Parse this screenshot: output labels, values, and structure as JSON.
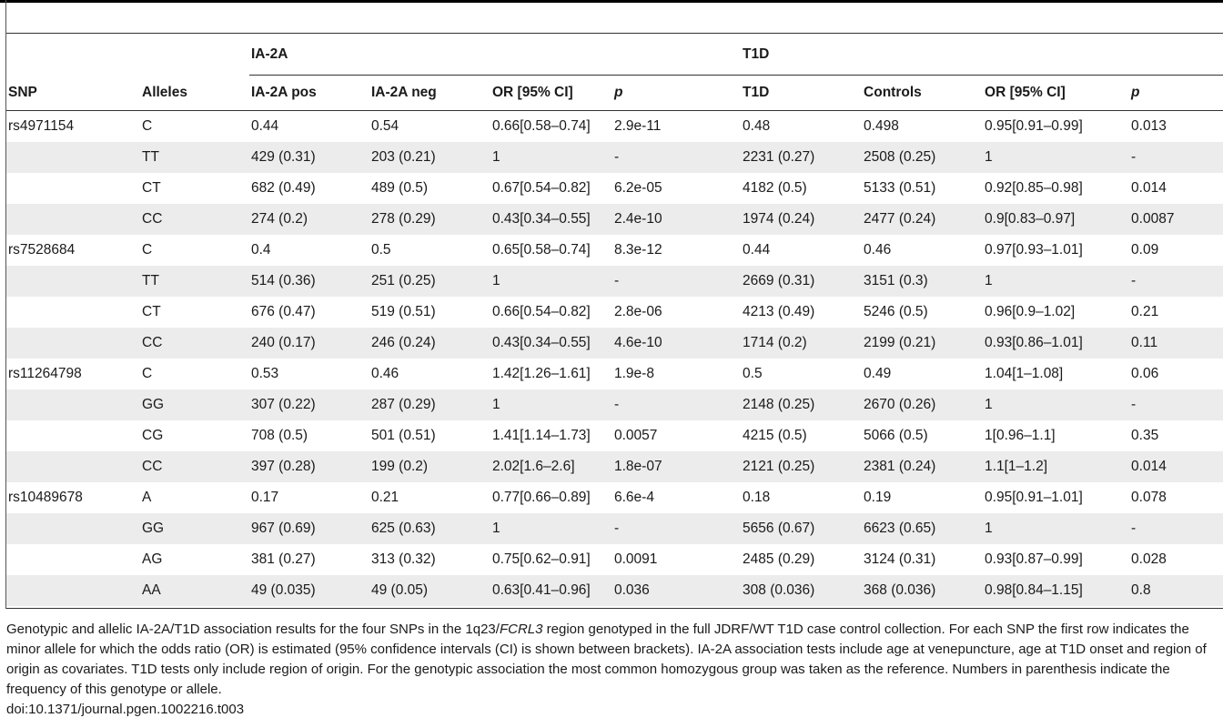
{
  "table": {
    "group_headers": {
      "ia2a": "IA-2A",
      "t1d": "T1D"
    },
    "columns": [
      "SNP",
      "Alleles",
      "IA-2A pos",
      "IA-2A neg",
      "OR [95% CI]",
      "p",
      "T1D",
      "Controls",
      "OR [95% CI]",
      "p"
    ],
    "rows": [
      {
        "snp": "rs4971154",
        "allele": "C",
        "ia_pos": "0.44",
        "ia_neg": "0.54",
        "ia_or": "0.66[0.58–0.74]",
        "ia_p": "2.9e-11",
        "t1d": "0.48",
        "ctrl": "0.498",
        "t1d_or": "0.95[0.91–0.99]",
        "t1d_p": "0.013"
      },
      {
        "snp": "",
        "allele": "TT",
        "ia_pos": "429 (0.31)",
        "ia_neg": "203 (0.21)",
        "ia_or": "1",
        "ia_p": "-",
        "t1d": "2231 (0.27)",
        "ctrl": "2508 (0.25)",
        "t1d_or": "1",
        "t1d_p": "-"
      },
      {
        "snp": "",
        "allele": "CT",
        "ia_pos": "682 (0.49)",
        "ia_neg": "489 (0.5)",
        "ia_or": "0.67[0.54–0.82]",
        "ia_p": "6.2e-05",
        "t1d": "4182 (0.5)",
        "ctrl": "5133 (0.51)",
        "t1d_or": "0.92[0.85–0.98]",
        "t1d_p": "0.014"
      },
      {
        "snp": "",
        "allele": "CC",
        "ia_pos": "274 (0.2)",
        "ia_neg": "278 (0.29)",
        "ia_or": "0.43[0.34–0.55]",
        "ia_p": "2.4e-10",
        "t1d": "1974 (0.24)",
        "ctrl": "2477 (0.24)",
        "t1d_or": "0.9[0.83–0.97]",
        "t1d_p": "0.0087"
      },
      {
        "snp": "rs7528684",
        "allele": "C",
        "ia_pos": "0.4",
        "ia_neg": "0.5",
        "ia_or": "0.65[0.58–0.74]",
        "ia_p": "8.3e-12",
        "t1d": "0.44",
        "ctrl": "0.46",
        "t1d_or": "0.97[0.93–1.01]",
        "t1d_p": "0.09"
      },
      {
        "snp": "",
        "allele": "TT",
        "ia_pos": "514 (0.36)",
        "ia_neg": "251 (0.25)",
        "ia_or": "1",
        "ia_p": "-",
        "t1d": "2669 (0.31)",
        "ctrl": "3151 (0.3)",
        "t1d_or": "1",
        "t1d_p": "-"
      },
      {
        "snp": "",
        "allele": "CT",
        "ia_pos": "676 (0.47)",
        "ia_neg": "519 (0.51)",
        "ia_or": "0.66[0.54–0.82]",
        "ia_p": "2.8e-06",
        "t1d": "4213 (0.49)",
        "ctrl": "5246 (0.5)",
        "t1d_or": "0.96[0.9–1.02]",
        "t1d_p": "0.21"
      },
      {
        "snp": "",
        "allele": "CC",
        "ia_pos": "240 (0.17)",
        "ia_neg": "246 (0.24)",
        "ia_or": "0.43[0.34–0.55]",
        "ia_p": "4.6e-10",
        "t1d": "1714 (0.2)",
        "ctrl": "2199 (0.21)",
        "t1d_or": "0.93[0.86–1.01]",
        "t1d_p": "0.11"
      },
      {
        "snp": "rs11264798",
        "allele": "C",
        "ia_pos": "0.53",
        "ia_neg": "0.46",
        "ia_or": "1.42[1.26–1.61]",
        "ia_p": "1.9e-8",
        "t1d": "0.5",
        "ctrl": "0.49",
        "t1d_or": "1.04[1–1.08]",
        "t1d_p": "0.06"
      },
      {
        "snp": "",
        "allele": "GG",
        "ia_pos": "307 (0.22)",
        "ia_neg": "287 (0.29)",
        "ia_or": "1",
        "ia_p": "-",
        "t1d": "2148 (0.25)",
        "ctrl": "2670 (0.26)",
        "t1d_or": "1",
        "t1d_p": "-"
      },
      {
        "snp": "",
        "allele": "CG",
        "ia_pos": "708 (0.5)",
        "ia_neg": "501 (0.51)",
        "ia_or": "1.41[1.14–1.73]",
        "ia_p": "0.0057",
        "t1d": "4215 (0.5)",
        "ctrl": "5066 (0.5)",
        "t1d_or": "1[0.96–1.1]",
        "t1d_p": "0.35"
      },
      {
        "snp": "",
        "allele": "CC",
        "ia_pos": "397 (0.28)",
        "ia_neg": "199 (0.2)",
        "ia_or": "2.02[1.6–2.6]",
        "ia_p": "1.8e-07",
        "t1d": "2121 (0.25)",
        "ctrl": "2381 (0.24)",
        "t1d_or": "1.1[1–1.2]",
        "t1d_p": "0.014"
      },
      {
        "snp": "rs10489678",
        "allele": "A",
        "ia_pos": "0.17",
        "ia_neg": "0.21",
        "ia_or": "0.77[0.66–0.89]",
        "ia_p": "6.6e-4",
        "t1d": "0.18",
        "ctrl": "0.19",
        "t1d_or": "0.95[0.91–1.01]",
        "t1d_p": "0.078"
      },
      {
        "snp": "",
        "allele": "GG",
        "ia_pos": "967 (0.69)",
        "ia_neg": "625 (0.63)",
        "ia_or": "1",
        "ia_p": "-",
        "t1d": "5656 (0.67)",
        "ctrl": "6623 (0.65)",
        "t1d_or": "1",
        "t1d_p": "-"
      },
      {
        "snp": "",
        "allele": "AG",
        "ia_pos": "381 (0.27)",
        "ia_neg": "313 (0.32)",
        "ia_or": "0.75[0.62–0.91]",
        "ia_p": "0.0091",
        "t1d": "2485 (0.29)",
        "ctrl": "3124 (0.31)",
        "t1d_or": "0.93[0.87–0.99]",
        "t1d_p": "0.028"
      },
      {
        "snp": "",
        "allele": "AA",
        "ia_pos": "49 (0.035)",
        "ia_neg": "49 (0.05)",
        "ia_or": "0.63[0.41–0.96]",
        "ia_p": "0.036",
        "t1d": "308 (0.036)",
        "ctrl": "368 (0.036)",
        "t1d_or": "0.98[0.84–1.15]",
        "t1d_p": "0.8"
      }
    ]
  },
  "footnote": {
    "text_before_italic": "Genotypic and allelic IA-2A/T1D association results for the four SNPs in the 1q23/",
    "italic": "FCRL3",
    "text_after_italic": " region genotyped in the full JDRF/WT T1D case control collection. For each SNP the first row indicates the minor allele for which the odds ratio (OR) is estimated (95% confidence intervals (CI) is shown between brackets). IA-2A association tests include age at venepuncture, age at T1D onset and region of origin as covariates. T1D tests only include region of origin. For the genotypic association the most common homozygous group was taken as the reference. Numbers in parenthesis indicate the frequency of this genotype or allele.",
    "doi": "doi:10.1371/journal.pgen.1002216.t003"
  },
  "colors": {
    "shade": "#ececec",
    "rule": "#333333"
  }
}
